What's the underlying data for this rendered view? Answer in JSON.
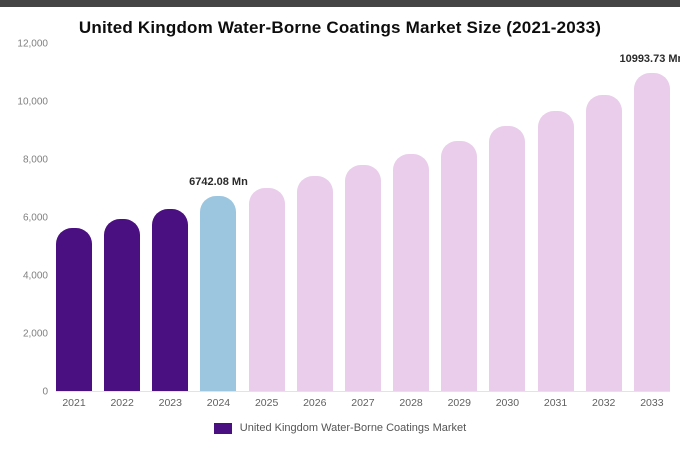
{
  "page": {
    "title": "United Kingdom Water-Borne Coatings Market Size (2021-2033)"
  },
  "legend": {
    "label": "United Kingdom Water-Borne Coatings Market",
    "swatch_color": "#4a0f80"
  },
  "chart_data": {
    "type": "bar",
    "title": "United Kingdom Water-Borne Coatings Market Size (2021-2033)",
    "categories": [
      "2021",
      "2022",
      "2023",
      "2024",
      "2025",
      "2026",
      "2027",
      "2028",
      "2029",
      "2030",
      "2031",
      "2032",
      "2033"
    ],
    "values": [
      5650,
      5950,
      6280,
      6742.08,
      7030,
      7440,
      7830,
      8200,
      8640,
      9150,
      9680,
      10230,
      10993.73
    ],
    "bar_colors": [
      "#4a0f80",
      "#4a0f80",
      "#4a0f80",
      "#9cc6e0",
      "#e9cdea",
      "#e9cdea",
      "#e9cdea",
      "#e9cdea",
      "#e9cdea",
      "#e9cdea",
      "#e9cdea",
      "#e9cdea",
      "#e9cdea"
    ],
    "annotations": [
      {
        "index": 3,
        "text": "6742.08 Mn"
      },
      {
        "index": 12,
        "text": "10993.73 Mn"
      }
    ],
    "xlabel": "",
    "ylabel": "",
    "ylim": [
      0,
      12000
    ],
    "yticks": [
      0,
      2000,
      4000,
      6000,
      8000,
      10000,
      12000
    ],
    "ytick_labels": [
      "0",
      "2,000",
      "4,000",
      "6,000",
      "8,000",
      "10,000",
      "12,000"
    ],
    "grid": false,
    "legend_position": "bottom"
  }
}
